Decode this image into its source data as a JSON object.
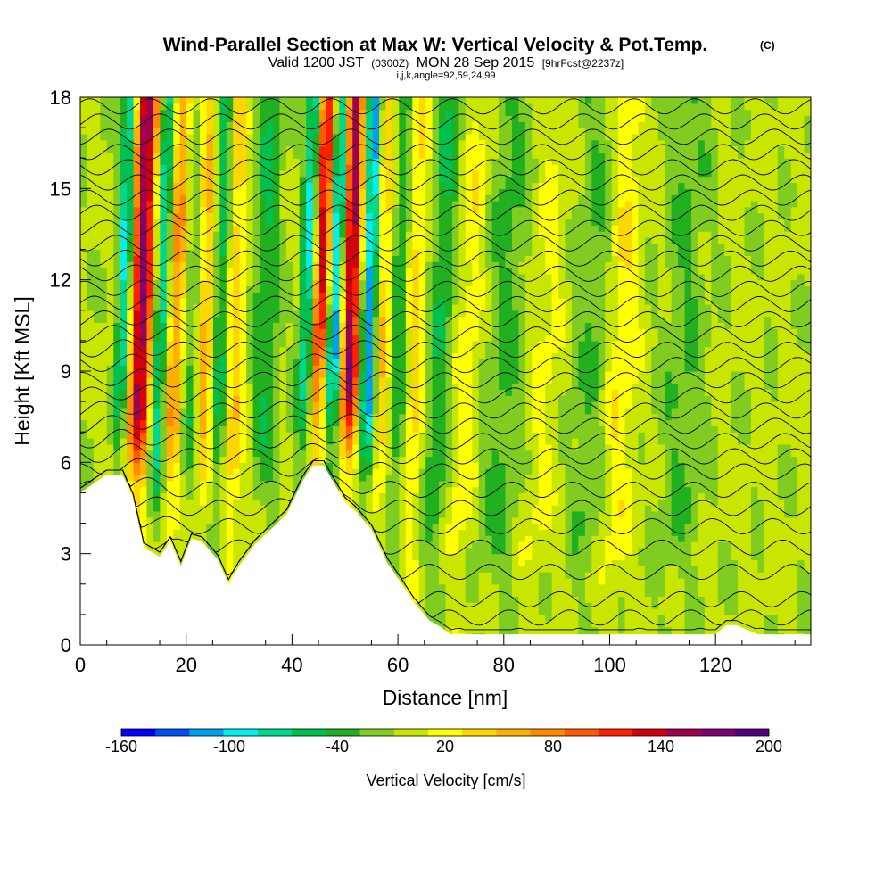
{
  "header": {
    "title": "Wind-Parallel Section at Max W: Vertical Velocity & Pot.Temp.",
    "copyright": "(C)",
    "valid_prefix": "Valid 1200 JST",
    "valid_utc": "(0300Z)",
    "valid_date": "MON 28 Sep 2015",
    "forecast": "[9hrFcst@2237z]",
    "indices": "i,j,k,angle=92,59,24,99"
  },
  "chart_data": {
    "type": "heatmap",
    "xlabel": "Distance [nm]",
    "ylabel": "Height [Kft MSL]",
    "xlim": [
      0,
      138
    ],
    "ylim": [
      0,
      18
    ],
    "x_ticks": [
      0,
      20,
      40,
      60,
      80,
      100,
      120
    ],
    "y_ticks": [
      0,
      3,
      6,
      9,
      12,
      15,
      18
    ],
    "colorbar": {
      "title": "Vertical Velocity [cm/s]",
      "tick_labels": [
        -160,
        -100,
        -40,
        20,
        80,
        140,
        200
      ],
      "levels": [
        -160,
        -140,
        -120,
        -100,
        -80,
        -60,
        -40,
        -20,
        0,
        20,
        40,
        60,
        80,
        100,
        120,
        140,
        160,
        180,
        200
      ],
      "colors": [
        "#0000ff",
        "#0050f0",
        "#00a0f0",
        "#00f0f0",
        "#00d890",
        "#00c050",
        "#20b020",
        "#80cc20",
        "#c8e600",
        "#ffff00",
        "#ffd700",
        "#ffb000",
        "#ff8a00",
        "#ff5a00",
        "#ff2000",
        "#d40010",
        "#a00050",
        "#800070",
        "#500080"
      ]
    },
    "terrain_profile_x": [
      0,
      5,
      8,
      10,
      12,
      15,
      17,
      19,
      21,
      23,
      26,
      28,
      30,
      33,
      36,
      39,
      42,
      44,
      46,
      48,
      50,
      52,
      55,
      58,
      60,
      63,
      66,
      68,
      70,
      76,
      80,
      85,
      90,
      100,
      110,
      120,
      122,
      124,
      128,
      132,
      138
    ],
    "terrain_profile_kft": [
      5.0,
      5.6,
      5.6,
      4.8,
      3.2,
      2.9,
      3.4,
      2.6,
      3.5,
      3.4,
      2.8,
      2.0,
      2.6,
      3.3,
      3.8,
      4.3,
      5.4,
      5.9,
      5.9,
      5.3,
      4.7,
      4.4,
      3.8,
      2.7,
      2.2,
      1.4,
      0.8,
      0.6,
      0.35,
      0.35,
      0.35,
      0.35,
      0.35,
      0.35,
      0.35,
      0.35,
      0.65,
      0.65,
      0.35,
      0.35,
      0.35
    ],
    "updraft_bands": [
      {
        "x0": 10,
        "x_slope": 0.15,
        "width": 2.2,
        "amp": 175
      },
      {
        "x0": 4,
        "x_slope": 0.35,
        "width": 1.6,
        "amp": 25
      },
      {
        "x0": 16,
        "x_slope": 0.2,
        "width": 1.6,
        "amp": 80
      },
      {
        "x0": 23,
        "x_slope": 0.05,
        "width": 2.0,
        "amp": 75
      },
      {
        "x0": 28,
        "x_slope": 0.1,
        "width": 2.0,
        "amp": 55
      },
      {
        "x0": 43,
        "x_slope": 0.2,
        "width": 2.0,
        "amp": 170
      },
      {
        "x0": 50,
        "x_slope": 0.1,
        "width": 2.0,
        "amp": 175
      },
      {
        "x0": 56,
        "x_slope": 0.1,
        "width": 1.8,
        "amp": 60
      },
      {
        "x0": 62,
        "x_slope": 0.1,
        "width": 2.5,
        "amp": 50
      },
      {
        "x0": 70,
        "x_slope": 0.3,
        "width": 3.0,
        "amp": 30
      },
      {
        "x0": 100,
        "x_slope": 0.2,
        "width": 3.0,
        "amp": 35
      },
      {
        "x0": 85,
        "x_slope": 0.3,
        "width": 3.0,
        "amp": 20
      }
    ],
    "downdraft_bands": [
      {
        "x0": 6,
        "x_slope": 0.2,
        "width": 1.4,
        "amp": -125
      },
      {
        "x0": 13,
        "x_slope": 0.2,
        "width": 1.4,
        "amp": -90
      },
      {
        "x0": 20,
        "x_slope": 0.15,
        "width": 1.8,
        "amp": -50
      },
      {
        "x0": 25,
        "x_slope": 0.15,
        "width": 1.6,
        "amp": -70
      },
      {
        "x0": 34,
        "x_slope": 0.1,
        "width": 2.5,
        "amp": -45
      },
      {
        "x0": 41,
        "x_slope": 0.2,
        "width": 1.6,
        "amp": -135
      },
      {
        "x0": 46,
        "x_slope": 0.2,
        "width": 1.6,
        "amp": -150
      },
      {
        "x0": 53,
        "x_slope": 0.15,
        "width": 1.6,
        "amp": -130
      },
      {
        "x0": 59,
        "x_slope": 0.15,
        "width": 2.0,
        "amp": -55
      },
      {
        "x0": 66,
        "x_slope": 0.2,
        "width": 3.0,
        "amp": -45
      },
      {
        "x0": 78,
        "x_slope": 0.2,
        "width": 4.0,
        "amp": -30
      },
      {
        "x0": 95,
        "x_slope": 0.2,
        "width": 4.0,
        "amp": -25
      },
      {
        "x0": 112,
        "x_slope": 0.2,
        "width": 4.0,
        "amp": -25
      }
    ],
    "potential_temperature_contour_heights_kft": [
      0.3,
      0.9,
      1.5,
      2.4,
      3.2,
      3.9,
      4.5,
      5.1,
      5.7,
      6.2,
      6.7,
      7.2,
      7.7,
      8.2,
      8.7,
      9.2,
      9.7,
      10.2,
      10.7,
      11.2,
      11.7,
      12.2,
      12.7,
      13.2,
      13.7,
      14.2,
      14.7,
      15.2,
      15.7,
      16.2,
      16.7,
      17.2,
      17.7
    ]
  }
}
